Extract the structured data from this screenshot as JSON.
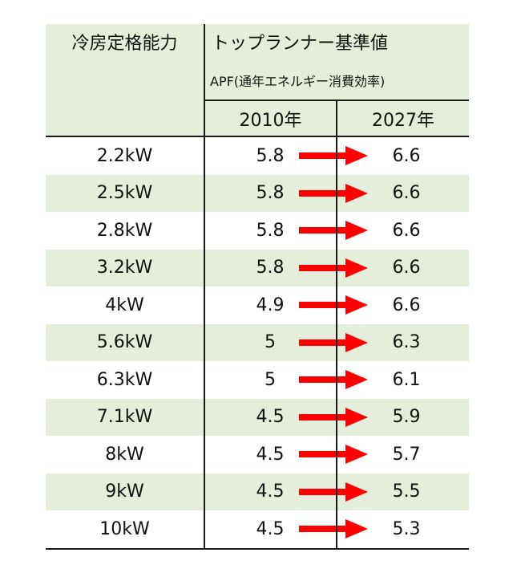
{
  "header": {
    "capacity_label": "冷房定格能力",
    "standard_label": "トップランナー基準値",
    "apf_label": "APF(通年エネルギー消費効率)",
    "year_2010_label": "2010年",
    "year_2027_label": "2027年"
  },
  "rows": [
    {
      "capacity": "2.2kW",
      "apf_2010": "5.8",
      "apf_2027": "6.6"
    },
    {
      "capacity": "2.5kW",
      "apf_2010": "5.8",
      "apf_2027": "6.6"
    },
    {
      "capacity": "2.8kW",
      "apf_2010": "5.8",
      "apf_2027": "6.6"
    },
    {
      "capacity": "3.2kW",
      "apf_2010": "5.8",
      "apf_2027": "6.6"
    },
    {
      "capacity": "4kW",
      "apf_2010": "4.9",
      "apf_2027": "6.6"
    },
    {
      "capacity": "5.6kW",
      "apf_2010": "5",
      "apf_2027": "6.3"
    },
    {
      "capacity": "6.3kW",
      "apf_2010": "5",
      "apf_2027": "6.1"
    },
    {
      "capacity": "7.1kW",
      "apf_2010": "4.5",
      "apf_2027": "5.9"
    },
    {
      "capacity": "8kW",
      "apf_2010": "4.5",
      "apf_2027": "5.7"
    },
    {
      "capacity": "9kW",
      "apf_2010": "4.5",
      "apf_2027": "5.5"
    },
    {
      "capacity": "10kW",
      "apf_2010": "4.5",
      "apf_2027": "5.3"
    }
  ],
  "colors": {
    "header_fill": "#e4eedb",
    "stripe_fill": "#e4eedb",
    "arrow": "#ff0000",
    "border": "#1a1a1a"
  }
}
